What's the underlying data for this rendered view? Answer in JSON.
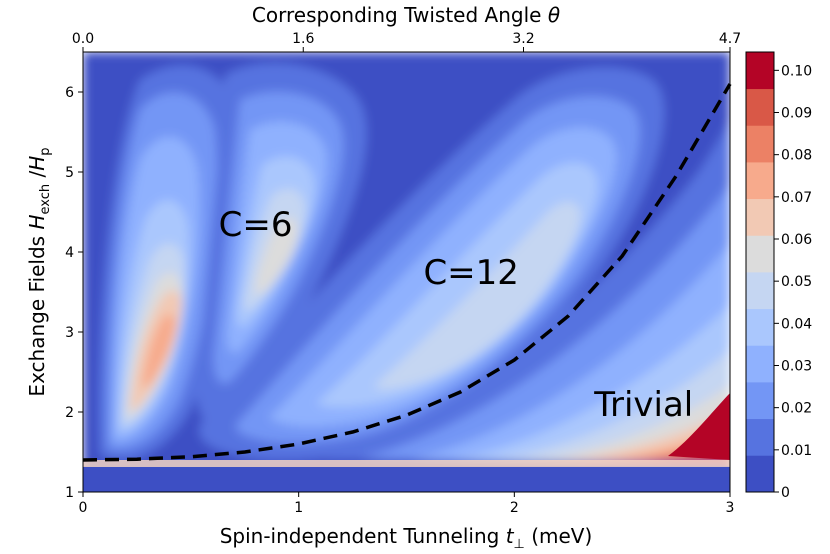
{
  "chart_data": {
    "type": "heatmap",
    "title": "",
    "xlabel": "Spin-independent Tunneling t ⊥ (meV)",
    "xlabel_main": "Spin-independent Tunneling ",
    "xlabel_sym": "t",
    "xlabel_sub": "⊥",
    "xlabel_unit": " (meV)",
    "ylabel": "Exchange Fields H exch / H p",
    "ylabel_main": "Exchange Fields ",
    "ylabel_sym": "H",
    "ylabel_sub": "exch",
    "ylabel_slash": " /",
    "ylabel_sym2": "H",
    "ylabel_sub2": "p",
    "top_xlabel": "Corresponding Twisted Angle θ",
    "top_xlabel_main": "Corresponding Twisted Angle ",
    "top_xlabel_sym": "θ",
    "xlim": [
      0,
      3
    ],
    "ylim": [
      1,
      6.5
    ],
    "x_ticks": [
      0,
      1,
      2,
      3
    ],
    "x_tick_labels": [
      "0",
      "1",
      "2",
      "3"
    ],
    "y_ticks": [
      1,
      2,
      3,
      4,
      5,
      6
    ],
    "y_tick_labels": [
      "1",
      "2",
      "3",
      "4",
      "5",
      "6"
    ],
    "top_ticks": [
      0,
      1.6,
      3.2,
      4.7
    ],
    "top_tick_labels": [
      "0.0",
      "1.6",
      "3.2",
      "4.7"
    ],
    "colorbar": {
      "levels": [
        0,
        0.01,
        0.02,
        0.03,
        0.04,
        0.05,
        0.06,
        0.07,
        0.08,
        0.09,
        0.1
      ],
      "tick_labels": [
        "0",
        "0.01",
        "0.02",
        "0.03",
        "0.04",
        "0.05",
        "0.06",
        "0.07",
        "0.08",
        "0.09",
        "0.10"
      ],
      "colors": [
        "#3d4fc4",
        "#5673e0",
        "#7396f5",
        "#8fb1fe",
        "#aac7fd",
        "#c5d6f2",
        "#dcdcdc",
        "#f2c9b4",
        "#f7aa8c",
        "#ec8165",
        "#d95847",
        "#b40426"
      ]
    },
    "phase_boundary": {
      "style": "dashed",
      "x": [
        0,
        0.25,
        0.5,
        0.75,
        1.0,
        1.25,
        1.5,
        1.75,
        2.0,
        2.25,
        2.5,
        2.75,
        3.0
      ],
      "y": [
        1.4,
        1.41,
        1.44,
        1.5,
        1.6,
        1.75,
        1.96,
        2.25,
        2.65,
        3.2,
        3.95,
        4.95,
        6.1
      ]
    },
    "annotations": [
      {
        "text": "C=6",
        "x": 0.8,
        "y": 4.2
      },
      {
        "text": "C=12",
        "x": 1.8,
        "y": 3.6
      },
      {
        "text": "Trivial",
        "x": 2.6,
        "y": 1.95
      }
    ]
  }
}
